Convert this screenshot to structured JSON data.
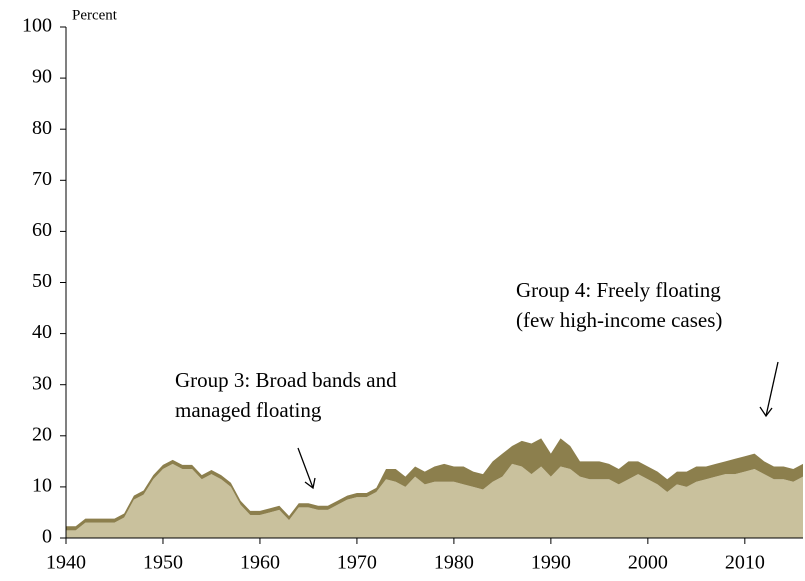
{
  "chart_data": {
    "type": "area",
    "stacked": true,
    "axis_label": "Percent",
    "x": [
      1940,
      1941,
      1942,
      1943,
      1944,
      1945,
      1946,
      1947,
      1948,
      1949,
      1950,
      1951,
      1952,
      1953,
      1954,
      1955,
      1956,
      1957,
      1958,
      1959,
      1960,
      1961,
      1962,
      1963,
      1964,
      1965,
      1966,
      1967,
      1968,
      1969,
      1970,
      1971,
      1972,
      1973,
      1974,
      1975,
      1976,
      1977,
      1978,
      1979,
      1980,
      1981,
      1982,
      1983,
      1984,
      1985,
      1986,
      1987,
      1988,
      1989,
      1990,
      1991,
      1992,
      1993,
      1994,
      1995,
      1996,
      1997,
      1998,
      1999,
      2000,
      2001,
      2002,
      2003,
      2004,
      2005,
      2006,
      2007,
      2008,
      2009,
      2010,
      2011,
      2012,
      2013,
      2014,
      2015,
      2016
    ],
    "series": [
      {
        "name": "Group 3: Broad bands and managed floating",
        "color": "#c9c19d",
        "values": [
          1.5,
          1.5,
          3,
          3,
          3,
          3,
          4,
          7.5,
          8.5,
          11.5,
          13.5,
          14.5,
          13.5,
          13.5,
          11.5,
          12.5,
          11.5,
          10,
          6.5,
          4.5,
          4.5,
          5,
          5.5,
          3.5,
          6,
          6,
          5.5,
          5.5,
          6.5,
          7.5,
          8,
          8,
          9,
          11.5,
          11,
          10,
          12,
          10.5,
          11,
          11,
          11,
          10.5,
          10,
          9.5,
          11,
          12,
          14.5,
          14,
          12.5,
          14,
          12,
          14,
          13.5,
          12,
          11.5,
          11.5,
          11.5,
          10.5,
          11.5,
          12.5,
          11.5,
          10.5,
          9,
          10.5,
          10,
          11,
          11.5,
          12,
          12.5,
          12.5,
          13,
          13.5,
          12.5,
          11.5,
          11.5,
          11,
          12
        ]
      },
      {
        "name": "Group 4: Freely floating (few high-income cases)",
        "color": "#8c7f4d",
        "values": [
          0.8,
          0.8,
          0.8,
          0.8,
          0.8,
          0.8,
          0.8,
          0.8,
          0.8,
          0.8,
          0.8,
          0.8,
          0.8,
          0.8,
          0.8,
          0.8,
          0.8,
          0.8,
          0.8,
          0.8,
          0.8,
          0.8,
          0.8,
          0.8,
          0.8,
          0.8,
          0.8,
          0.8,
          0.8,
          0.8,
          0.8,
          0.8,
          0.8,
          2,
          2.5,
          2,
          2,
          2.5,
          3,
          3.5,
          3,
          3.5,
          3,
          3,
          4,
          4.5,
          3.5,
          5,
          6,
          5.5,
          4.5,
          5.5,
          4.5,
          3,
          3.5,
          3.5,
          3,
          3,
          3.5,
          2.5,
          2.5,
          2.5,
          2.5,
          2.5,
          3,
          3,
          2.5,
          2.5,
          2.5,
          3,
          3,
          3,
          2.5,
          2.5,
          2.5,
          2.5,
          2.5
        ]
      }
    ],
    "annotations": [
      {
        "lines": [
          "Group 3: Broad bands and",
          " managed floating"
        ]
      },
      {
        "lines": [
          "Group 4: Freely floating",
          "(few high-income cases)"
        ]
      }
    ],
    "xlim": [
      1940,
      2016
    ],
    "xticks": [
      1940,
      1950,
      1960,
      1970,
      1980,
      1990,
      2000,
      2010
    ],
    "ylim": [
      0,
      100
    ],
    "yticks": [
      0,
      10,
      20,
      30,
      40,
      50,
      60,
      70,
      80,
      90,
      100
    ]
  }
}
